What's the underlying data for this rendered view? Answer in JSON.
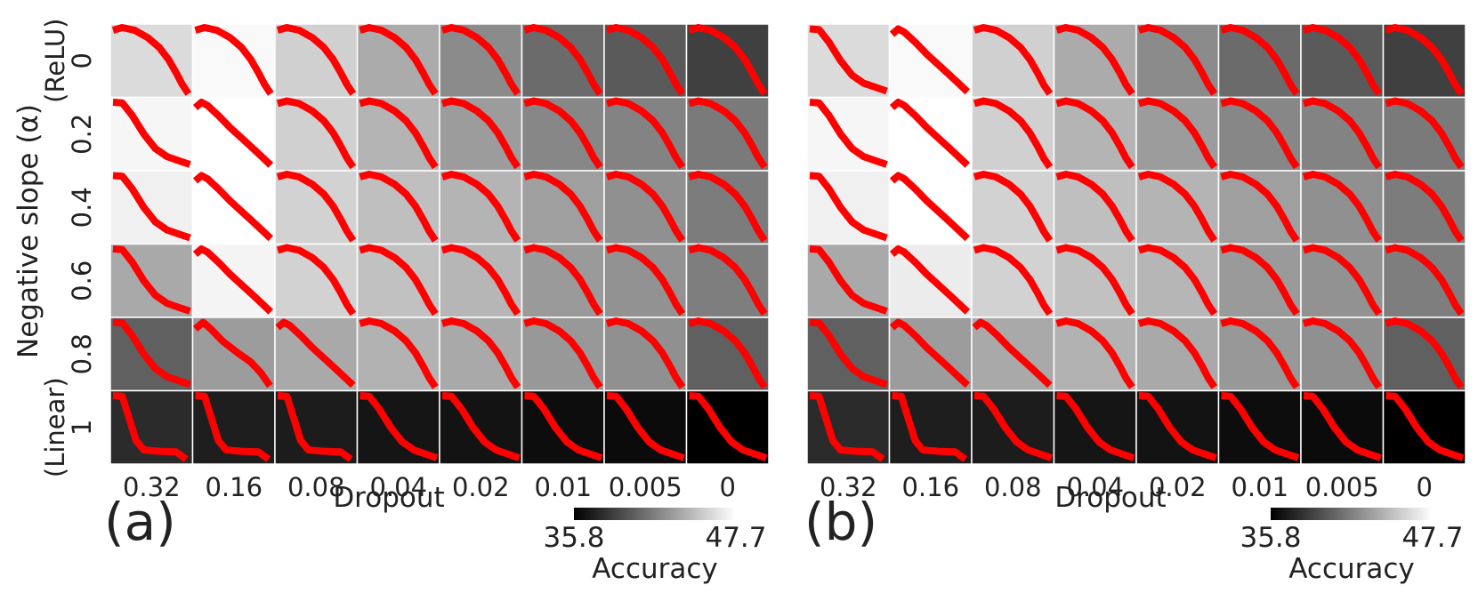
{
  "chart_data": [
    {
      "type": "heatmap",
      "panel_label": "(a)",
      "xlabel": "Dropout",
      "ylabel": "Negative slope (α)",
      "x_tick_labels": [
        "0.32",
        "0.16",
        "0.08",
        "0.04",
        "0.02",
        "0.01",
        "0.005",
        "0"
      ],
      "y_tick_labels": [
        "0",
        "0.2",
        "0.4",
        "0.6",
        "0.8",
        "1"
      ],
      "y_tick_sublabels": [
        "(ReLU)",
        "",
        "",
        "",
        "",
        "(Linear)"
      ],
      "colorbar": {
        "min": 35.8,
        "max": 47.7,
        "min_label": "35.8",
        "max_label": "47.7",
        "label": "Accuracy",
        "cmap": "gray"
      },
      "values": [
        [
          46.0,
          47.4,
          45.5,
          43.8,
          42.3,
          40.8,
          40.0,
          38.8
        ],
        [
          47.3,
          47.7,
          45.5,
          44.2,
          43.1,
          42.1,
          41.9,
          41.5
        ],
        [
          47.0,
          47.7,
          45.6,
          44.7,
          44.2,
          43.2,
          42.5,
          41.6
        ],
        [
          43.7,
          47.2,
          45.6,
          44.8,
          44.3,
          43.0,
          42.6,
          41.7
        ],
        [
          40.3,
          43.1,
          43.7,
          44.1,
          43.7,
          42.9,
          42.5,
          40.3
        ],
        [
          37.8,
          37.2,
          37.1,
          36.8,
          36.7,
          36.4,
          36.3,
          35.8
        ]
      ],
      "curve_color": "#ff0000",
      "curve_shapes": [
        [
          "concave",
          "concave",
          "concave",
          "concave",
          "concave",
          "concave",
          "concave",
          "concave"
        ],
        [
          "convex",
          "linear",
          "concave",
          "concave",
          "concave",
          "concave",
          "concave",
          "concave"
        ],
        [
          "convex",
          "linear",
          "concave",
          "concave",
          "concave",
          "concave",
          "concave",
          "concave"
        ],
        [
          "convex",
          "linear",
          "concave",
          "concave",
          "concave",
          "concave",
          "concave",
          "concave"
        ],
        [
          "convex",
          "sigmoid",
          "linear",
          "concave",
          "concave",
          "concave",
          "concave",
          "concave"
        ],
        [
          "step",
          "step",
          "step",
          "convex",
          "convex",
          "convex",
          "convex",
          "convex"
        ]
      ]
    },
    {
      "type": "heatmap",
      "panel_label": "(b)",
      "xlabel": "Dropout",
      "ylabel": "",
      "x_tick_labels": [
        "0.32",
        "0.16",
        "0.08",
        "0.04",
        "0.02",
        "0.01",
        "0.005",
        "0"
      ],
      "y_tick_labels": [],
      "colorbar": {
        "min": 35.8,
        "max": 47.7,
        "min_label": "35.8",
        "max_label": "47.7",
        "label": "Accuracy",
        "cmap": "gray"
      },
      "values": [
        [
          46.0,
          47.4,
          45.5,
          43.8,
          42.3,
          40.8,
          40.0,
          38.8
        ],
        [
          47.3,
          47.7,
          45.5,
          44.2,
          43.1,
          42.1,
          41.9,
          41.5
        ],
        [
          47.0,
          47.7,
          45.6,
          44.7,
          44.2,
          43.2,
          42.5,
          41.6
        ],
        [
          43.7,
          46.8,
          45.6,
          44.8,
          44.3,
          43.0,
          42.6,
          41.7
        ],
        [
          40.3,
          43.1,
          43.7,
          44.1,
          43.7,
          42.9,
          42.5,
          40.3
        ],
        [
          37.8,
          37.2,
          37.1,
          36.8,
          36.7,
          36.4,
          36.3,
          35.8
        ]
      ],
      "curve_color": "#ff0000",
      "curve_shapes": [
        [
          "convex",
          "linear",
          "concave",
          "concave",
          "concave",
          "concave",
          "concave",
          "concave"
        ],
        [
          "convex",
          "linear",
          "concave",
          "concave",
          "concave",
          "concave",
          "concave",
          "concave"
        ],
        [
          "convex",
          "linear",
          "concave",
          "concave",
          "concave",
          "concave",
          "concave",
          "concave"
        ],
        [
          "convex",
          "linear",
          "concave",
          "concave",
          "concave",
          "concave",
          "concave",
          "concave"
        ],
        [
          "convex",
          "linear",
          "linear",
          "concave",
          "concave",
          "concave",
          "concave",
          "concave"
        ],
        [
          "step",
          "step",
          "convex",
          "convex",
          "convex",
          "convex",
          "convex",
          "convex"
        ]
      ]
    }
  ]
}
